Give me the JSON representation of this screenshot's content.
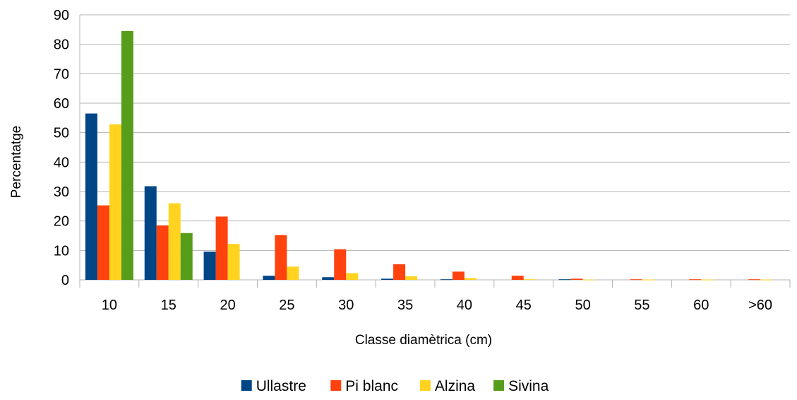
{
  "chart_data": {
    "type": "bar",
    "title": "",
    "xlabel": "Classe diamètrica (cm)",
    "ylabel": "Percentatge",
    "ylim": [
      0,
      90
    ],
    "yticks": [
      0,
      10,
      20,
      30,
      40,
      50,
      60,
      70,
      80,
      90
    ],
    "grid": true,
    "legend_position": "bottom",
    "categories": [
      "10",
      "15",
      "20",
      "25",
      "30",
      "35",
      "40",
      "45",
      "50",
      "55",
      "60",
      ">60"
    ],
    "series": [
      {
        "name": "Ullastre",
        "color": "#004586",
        "values": [
          56.5,
          31.8,
          9.6,
          1.4,
          0.9,
          0.4,
          0.2,
          0,
          0.2,
          0,
          0,
          0
        ]
      },
      {
        "name": "Pi blanc",
        "color": "#ff420e",
        "values": [
          25.3,
          18.5,
          21.5,
          15.2,
          10.4,
          5.3,
          2.8,
          1.4,
          0.4,
          0.2,
          0.2,
          0.2
        ]
      },
      {
        "name": "Alzina",
        "color": "#ffd320",
        "values": [
          52.8,
          26.0,
          12.2,
          4.5,
          2.3,
          1.2,
          0.6,
          0.2,
          0.1,
          0.1,
          0.1,
          0.1
        ]
      },
      {
        "name": "Sivina",
        "color": "#579d1c",
        "values": [
          84.5,
          15.9,
          0,
          0,
          0,
          0,
          0,
          0,
          0,
          0,
          0,
          0
        ]
      }
    ]
  }
}
